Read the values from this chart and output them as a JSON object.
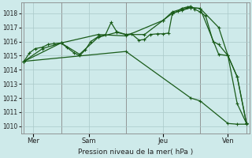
{
  "bg_color": "#ceeaea",
  "grid_color": "#aac8c8",
  "line_color": "#1a5c1a",
  "ylabel": "Pression niveau de la mer( hPa )",
  "ylim": [
    1009.5,
    1018.75
  ],
  "yticks": [
    1010,
    1011,
    1012,
    1013,
    1014,
    1015,
    1016,
    1017,
    1018
  ],
  "xlim": [
    -0.15,
    12.15
  ],
  "xtick_positions": [
    0.5,
    3.5,
    7.5,
    11.0
  ],
  "xtick_labels": [
    "Mer",
    "Sam",
    "Jeu",
    "Ven"
  ],
  "vlines": [
    0.0,
    2.0,
    5.5,
    9.5,
    12.0
  ],
  "series1": {
    "x": [
      0,
      0.3,
      0.6,
      1.0,
      1.3,
      1.6,
      2.0,
      2.3,
      2.7,
      3.0,
      3.3,
      3.6,
      4.0,
      4.4,
      4.7,
      5.0,
      5.5,
      5.8,
      6.2,
      6.5,
      6.8,
      7.2,
      7.5,
      7.8,
      8.0,
      8.3,
      8.5,
      8.8,
      9.0,
      9.2,
      9.5,
      9.8,
      10.2,
      10.5,
      11.0,
      11.5,
      12.0
    ],
    "y": [
      1014.6,
      1015.2,
      1015.5,
      1015.6,
      1015.8,
      1015.85,
      1015.9,
      1015.6,
      1015.2,
      1015.0,
      1015.4,
      1016.0,
      1016.35,
      1016.5,
      1017.35,
      1016.7,
      1016.5,
      1016.55,
      1016.1,
      1016.15,
      1016.5,
      1016.55,
      1016.55,
      1016.6,
      1018.0,
      1018.15,
      1018.35,
      1018.45,
      1018.5,
      1018.3,
      1018.1,
      1017.8,
      1016.0,
      1015.8,
      1015.0,
      1013.5,
      1010.2
    ]
  },
  "series2": {
    "x": [
      0,
      1.0,
      2.0,
      3.0,
      4.0,
      5.0,
      5.5,
      6.5,
      7.5,
      8.0,
      8.5,
      9.0,
      9.5,
      10.5,
      11.0,
      11.5,
      12.0
    ],
    "y": [
      1014.6,
      1015.5,
      1015.9,
      1015.1,
      1016.3,
      1016.65,
      1016.5,
      1016.5,
      1017.5,
      1018.0,
      1018.2,
      1018.4,
      1018.35,
      1015.1,
      1015.0,
      1013.5,
      1010.2
    ]
  },
  "series3": {
    "x": [
      0,
      2.0,
      4.0,
      5.5,
      7.5,
      8.0,
      8.5,
      9.0,
      9.5,
      10.5,
      11.0,
      11.5,
      12.0
    ],
    "y": [
      1014.6,
      1015.9,
      1016.5,
      1016.4,
      1017.5,
      1018.1,
      1018.3,
      1018.4,
      1018.35,
      1017.0,
      1015.0,
      1011.6,
      1010.2
    ]
  },
  "series4": {
    "x": [
      0,
      5.5,
      9.0,
      9.5,
      11.0,
      11.5,
      12.0
    ],
    "y": [
      1014.6,
      1015.3,
      1012.0,
      1011.8,
      1010.2,
      1010.15,
      1010.15
    ]
  }
}
